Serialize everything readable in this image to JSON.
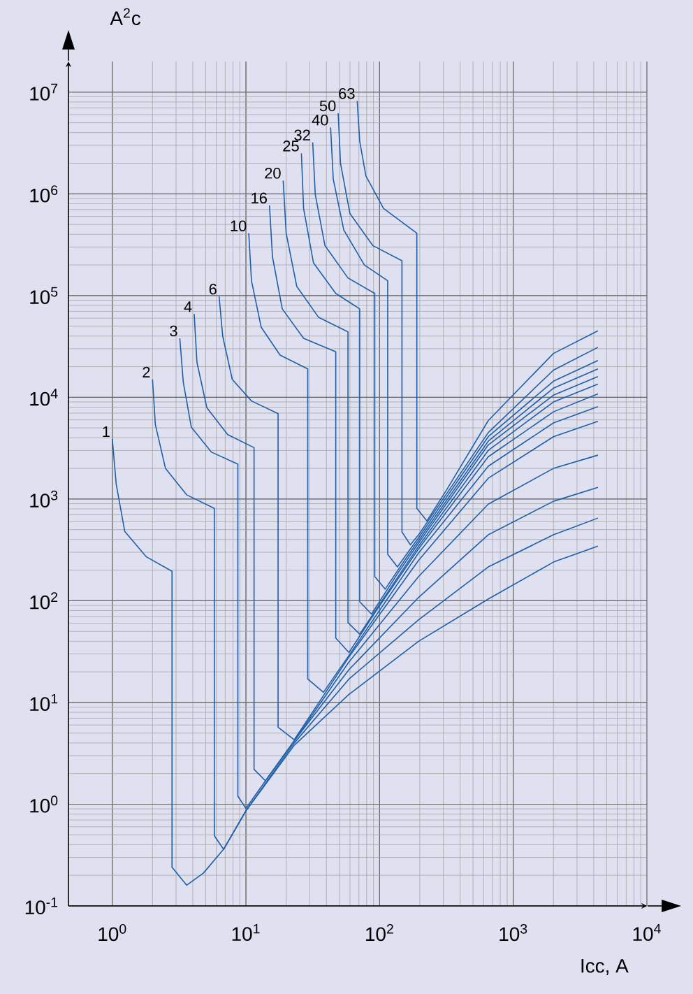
{
  "chart_data": {
    "type": "line",
    "xlabel": "Icc, A",
    "ylabel": "A$^{2}$c",
    "log": "xy",
    "grid": true,
    "xlim": [
      0.47,
      10000
    ],
    "ylim": [
      0.1,
      20000000
    ],
    "xticks": [
      {
        "value": 1,
        "label": "10$^{0}$"
      },
      {
        "value": 10,
        "label": "10$^{1}$"
      },
      {
        "value": 100,
        "label": "10$^{2}$"
      },
      {
        "value": 1000,
        "label": "10$^{3}$"
      },
      {
        "value": 10000,
        "label": "10$^{4}$"
      }
    ],
    "yticks": [
      {
        "value": 0.1,
        "label": "10$^{-1}$"
      },
      {
        "value": 1,
        "label": "10$^{0}$"
      },
      {
        "value": 10,
        "label": "10$^{1}$"
      },
      {
        "value": 100,
        "label": "10$^{2}$"
      },
      {
        "value": 1000,
        "label": "10$^{3}$"
      },
      {
        "value": 10000,
        "label": "10$^{4}$"
      },
      {
        "value": 100000,
        "label": "10$^{5}$"
      },
      {
        "value": 1000000,
        "label": "10$^{6}$"
      },
      {
        "value": 10000000,
        "label": "10$^{7}$"
      }
    ],
    "series": [
      {
        "name": "1",
        "color": "#1f5fa8",
        "x": [
          1.0,
          1.07,
          1.24,
          1.8,
          2.8,
          2.8,
          3.6,
          4.8,
          6.8,
          10,
          23,
          59,
          196,
          650,
          2000,
          4300
        ],
        "values": [
          3900,
          1400,
          480,
          270,
          195,
          0.24,
          0.16,
          0.21,
          0.36,
          0.86,
          3.8,
          12,
          40,
          104,
          240,
          345
        ]
      },
      {
        "name": "2",
        "color": "#1f5fa8",
        "x": [
          2.0,
          2.1,
          2.5,
          3.6,
          5.8,
          5.8,
          6.8,
          10,
          23,
          59,
          196,
          650,
          2000,
          4300
        ],
        "values": [
          15000,
          5400,
          2000,
          1100,
          810,
          0.49,
          0.36,
          0.86,
          4.0,
          17,
          65,
          215,
          445,
          650
        ]
      },
      {
        "name": "3",
        "color": "#1f5fa8",
        "x": [
          3.2,
          3.4,
          3.9,
          5.5,
          8.7,
          8.7,
          10,
          14,
          23,
          59,
          196,
          650,
          2000,
          4300
        ],
        "values": [
          38000,
          14000,
          5100,
          2900,
          2200,
          1.2,
          0.91,
          1.7,
          4.2,
          21,
          108,
          445,
          950,
          1300
        ]
      },
      {
        "name": "4",
        "color": "#1f5fa8",
        "x": [
          4.1,
          4.3,
          5.1,
          7.3,
          11.5,
          11.5,
          14,
          23,
          59,
          196,
          650,
          2000,
          4300
        ],
        "values": [
          66000,
          22000,
          7900,
          4300,
          3200,
          2.2,
          1.7,
          4.2,
          25,
          173,
          890,
          2000,
          2700
        ]
      },
      {
        "name": "6",
        "color": "#1f5fa8",
        "x": [
          6.3,
          6.7,
          7.9,
          11,
          17.4,
          17.4,
          23,
          59,
          196,
          650,
          2000,
          4300
        ],
        "values": [
          98000,
          40000,
          15000,
          9200,
          6900,
          5.7,
          4.3,
          28,
          250,
          1600,
          4100,
          5800
        ]
      },
      {
        "name": "10",
        "color": "#1f5fa8",
        "x": [
          10.5,
          11,
          13,
          18,
          29,
          29,
          38,
          59,
          196,
          650,
          2000,
          4300
        ],
        "values": [
          410000,
          140000,
          49000,
          26000,
          19000,
          17,
          12.6,
          29,
          295,
          2100,
          5600,
          8100
        ]
      },
      {
        "name": "16",
        "color": "#1f5fa8",
        "x": [
          15,
          15.8,
          18.7,
          27,
          47,
          47,
          59,
          95,
          196,
          650,
          2000,
          4300
        ],
        "values": [
          770000,
          240000,
          74000,
          38000,
          28000,
          43,
          31,
          81,
          325,
          2600,
          7200,
          10800
        ]
      },
      {
        "name": "20",
        "color": "#1f5fa8",
        "x": [
          19,
          20,
          24,
          35,
          58,
          58,
          71,
          121,
          196,
          650,
          2000,
          4300
        ],
        "values": [
          1350000,
          410000,
          123000,
          61000,
          44000,
          61,
          47,
          134,
          345,
          3000,
          9000,
          13500
        ]
      },
      {
        "name": "25",
        "color": "#1f5fa8",
        "x": [
          26,
          27,
          32,
          47,
          71,
          71,
          87,
          136,
          196,
          650,
          2000,
          4300
        ],
        "values": [
          2500000,
          720000,
          210000,
          105000,
          74000,
          98,
          74,
          184,
          370,
          3400,
          10500,
          16000
        ]
      },
      {
        "name": "32",
        "color": "#1f5fa8",
        "x": [
          31.6,
          33,
          39,
          58,
          92,
          92,
          110,
          154,
          196,
          650,
          2000,
          4300
        ],
        "values": [
          3200000,
          990000,
          310000,
          149000,
          105000,
          173,
          130,
          250,
          393,
          3700,
          12300,
          19000
        ]
      },
      {
        "name": "40",
        "color": "#1f5fa8",
        "x": [
          43,
          45,
          54,
          77,
          115,
          115,
          136,
          196,
          650,
          2000,
          4300
        ],
        "values": [
          4500000,
          1400000,
          440000,
          200000,
          140000,
          286,
          215,
          418,
          4100,
          14400,
          23000
        ]
      },
      {
        "name": "50",
        "color": "#1f5fa8",
        "x": [
          49,
          51,
          60,
          89,
          147,
          147,
          170,
          196,
          650,
          2000,
          4300
        ],
        "values": [
          6200000,
          2000000,
          640000,
          310000,
          220000,
          475,
          355,
          445,
          4500,
          18500,
          31000
        ]
      },
      {
        "name": "63",
        "color": "#1f5fa8",
        "x": [
          68,
          71,
          79,
          107,
          190,
          190,
          226,
          316,
          650,
          2000,
          4300
        ],
        "values": [
          8200000,
          3300000,
          1500000,
          720000,
          410000,
          810,
          610,
          1220,
          5900,
          27000,
          45000
        ]
      }
    ]
  }
}
